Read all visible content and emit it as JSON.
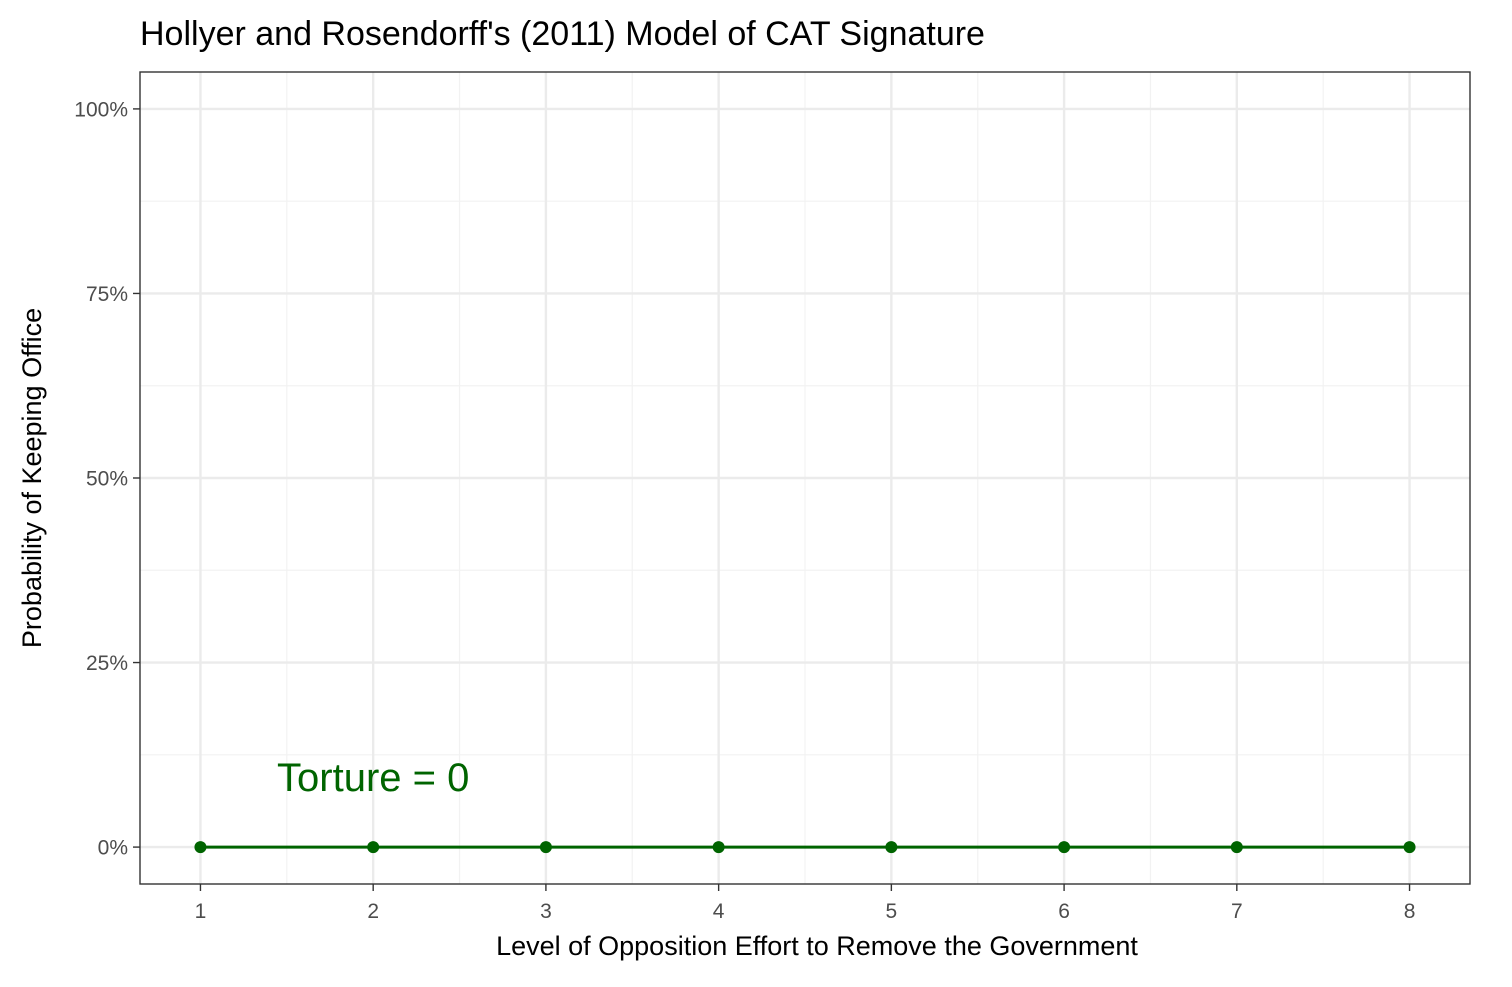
{
  "chart_data": {
    "type": "line",
    "title": "Hollyer and Rosendorff's (2011) Model of CAT Signature",
    "xlabel": "Level of Opposition Effort to Remove the Government",
    "ylabel": "Probability of Keeping Office",
    "x": [
      1,
      2,
      3,
      4,
      5,
      6,
      7,
      8
    ],
    "series": [
      {
        "values": [
          0,
          0,
          0,
          0,
          0,
          0,
          0,
          0
        ],
        "color": "#006400"
      }
    ],
    "xlim": [
      0.65,
      8.35
    ],
    "ylim": [
      -0.05,
      1.05
    ],
    "x_ticks": [
      1,
      2,
      3,
      4,
      5,
      6,
      7,
      8
    ],
    "y_ticks": [
      0,
      0.25,
      0.5,
      0.75,
      1.0
    ],
    "y_tick_labels": [
      "0%",
      "25%",
      "50%",
      "75%",
      "100%"
    ],
    "grid": true,
    "annotations": [
      {
        "text": "Torture = 0",
        "x": 2,
        "y": 0.095,
        "color": "#006400"
      }
    ]
  }
}
